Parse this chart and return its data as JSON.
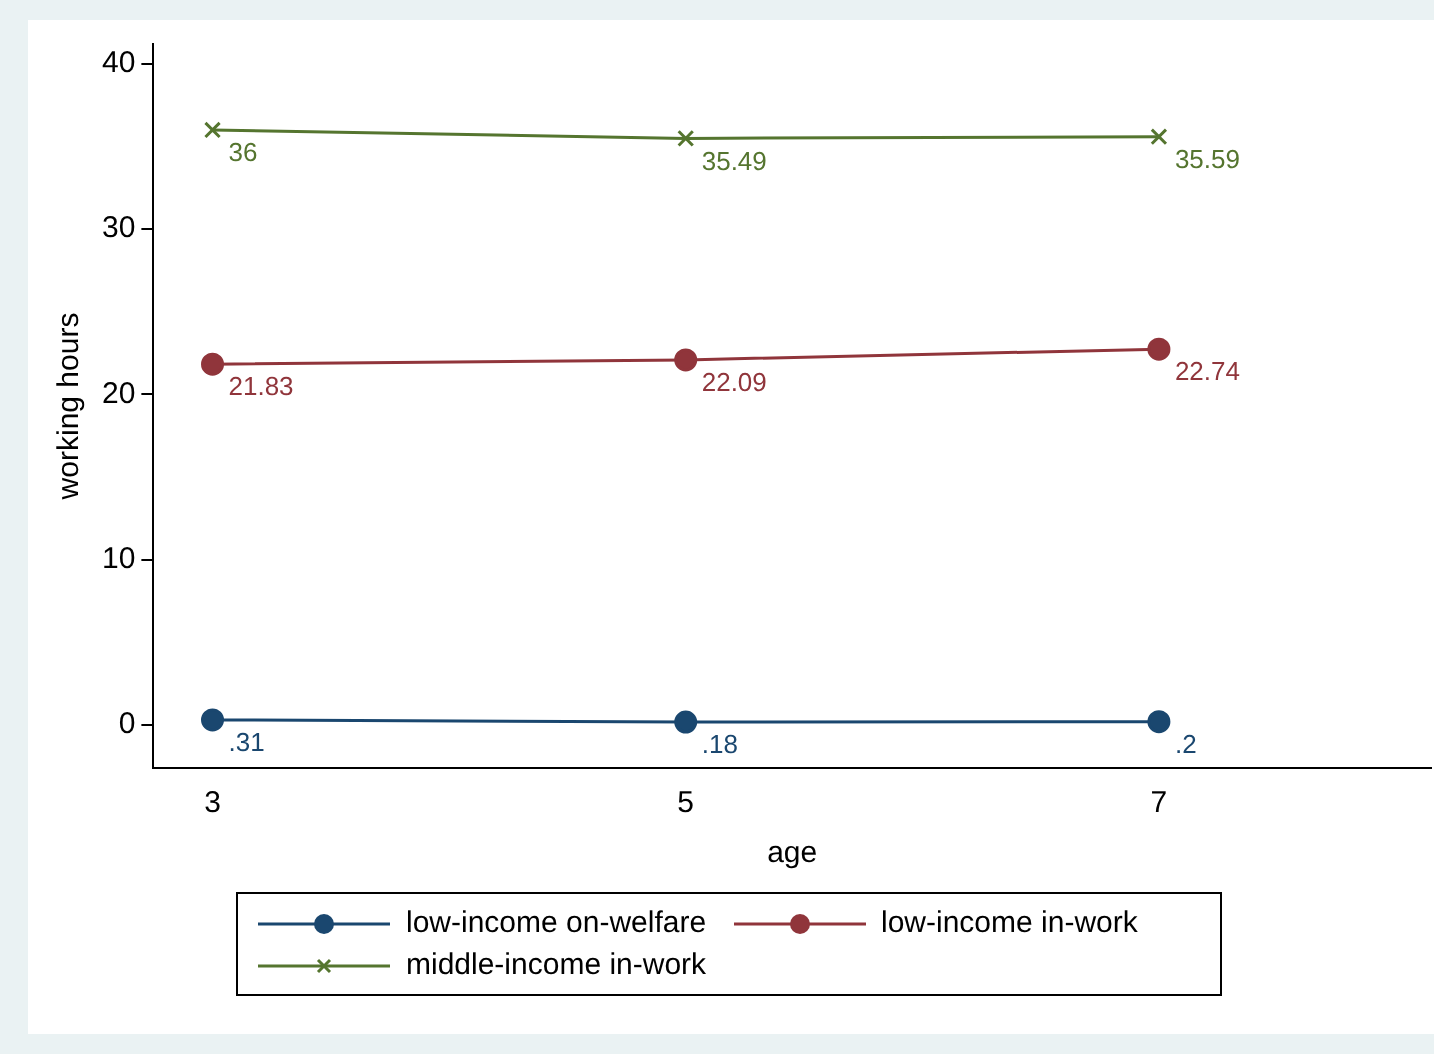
{
  "chart_data": {
    "type": "line",
    "xlabel": "age",
    "ylabel": "working hours",
    "x": [
      3,
      5,
      7
    ],
    "xlim": [
      2.75,
      8.15
    ],
    "xticks": [
      3,
      5,
      7
    ],
    "ylim": [
      -2.6,
      41.2
    ],
    "yticks": [
      0,
      10,
      20,
      30,
      40
    ],
    "grid": false,
    "legend": "bottom",
    "line_style": "solid",
    "series": [
      {
        "name": "low-income on-welfare",
        "color": "#1a476f",
        "marker": "circle",
        "values": [
          0.31,
          0.18,
          0.2
        ],
        "value_labels": [
          ".31",
          ".18",
          ".2"
        ]
      },
      {
        "name": "low-income in-work",
        "color": "#90353b",
        "marker": "circle",
        "values": [
          21.83,
          22.09,
          22.74
        ],
        "value_labels": [
          "21.83",
          "22.09",
          "22.74"
        ]
      },
      {
        "name": "middle-income in-work",
        "color": "#55752f",
        "marker": "cross",
        "values": [
          36,
          35.49,
          35.59
        ],
        "value_labels": [
          "36",
          "35.49",
          "35.59"
        ]
      }
    ]
  }
}
